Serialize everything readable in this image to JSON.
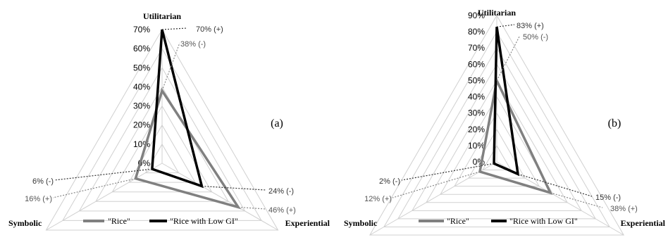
{
  "chart_data": [
    {
      "type": "radar",
      "panel_label": "(a)",
      "axes": [
        "Utilitarian",
        "Experiential",
        "Symbolic"
      ],
      "ticks": [
        "0%",
        "10%",
        "20%",
        "30%",
        "40%",
        "50%",
        "60%",
        "70%"
      ],
      "rmax": 70,
      "series": [
        {
          "name": "\"Rice\"",
          "color": "#808080",
          "values": [
            38,
            46,
            16
          ]
        },
        {
          "name": "\"Rice with Low GI\"",
          "color": "#000000",
          "values": [
            70,
            24,
            6
          ]
        }
      ],
      "annotations": [
        {
          "text": "70% (+)",
          "series": 1,
          "axis": 0
        },
        {
          "text": "38% (-)",
          "series": 0,
          "axis": 0
        },
        {
          "text": "24% (-)",
          "series": 1,
          "axis": 1
        },
        {
          "text": "46% (+)",
          "series": 0,
          "axis": 1
        },
        {
          "text": "6% (-)",
          "series": 1,
          "axis": 2
        },
        {
          "text": "16% (+)",
          "series": 0,
          "axis": 2
        }
      ]
    },
    {
      "type": "radar",
      "panel_label": "(b)",
      "axes": [
        "Utilitarian",
        "Experiential",
        "Symbolic"
      ],
      "ticks": [
        "0%",
        "10%",
        "20%",
        "30%",
        "40%",
        "50%",
        "60%",
        "70%",
        "80%",
        "90%"
      ],
      "rmax": 90,
      "series": [
        {
          "name": "\"Rice\"",
          "color": "#808080",
          "values": [
            50,
            38,
            12
          ]
        },
        {
          "name": "\"Rice with Low GI\"",
          "color": "#000000",
          "values": [
            83,
            15,
            2
          ]
        }
      ],
      "annotations": [
        {
          "text": "83% (+)",
          "series": 1,
          "axis": 0
        },
        {
          "text": "50% (-)",
          "series": 0,
          "axis": 0
        },
        {
          "text": "15% (-)",
          "series": 1,
          "axis": 1
        },
        {
          "text": "38% (+)",
          "series": 0,
          "axis": 1
        },
        {
          "text": "2% (-)",
          "series": 1,
          "axis": 2
        },
        {
          "text": "12% (+)",
          "series": 0,
          "axis": 2
        }
      ]
    }
  ]
}
